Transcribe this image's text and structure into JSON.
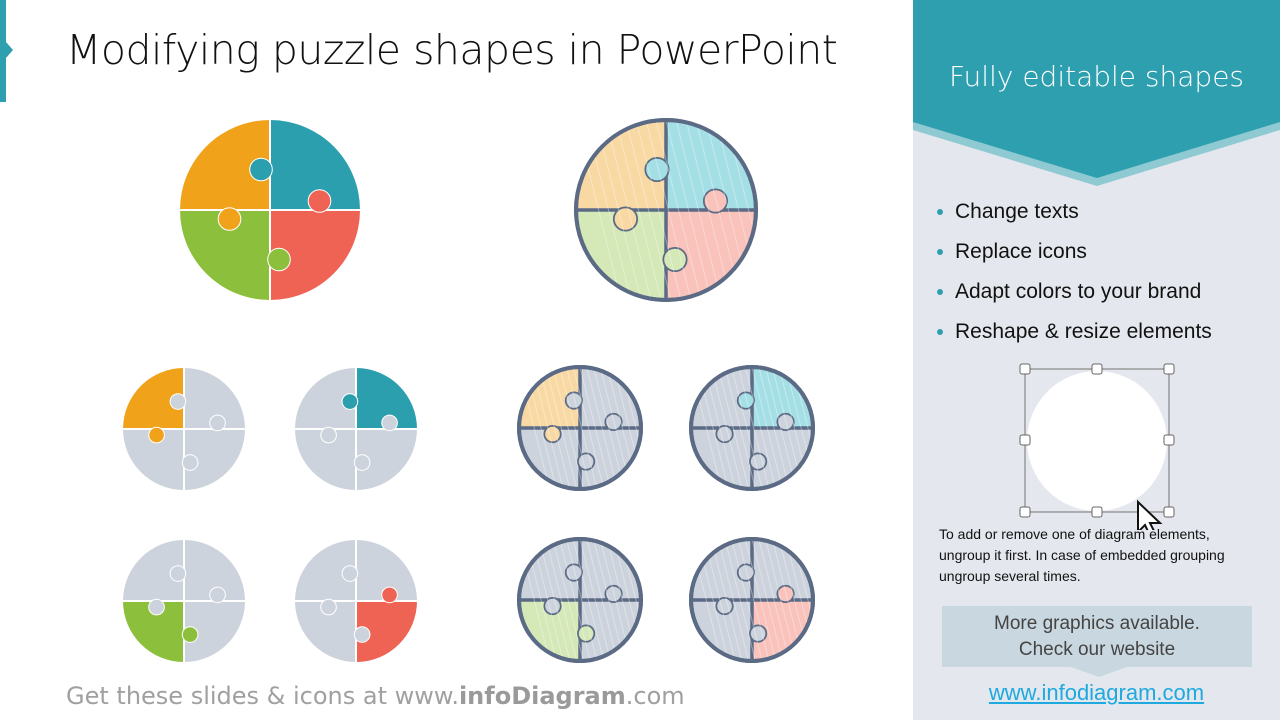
{
  "title": "Modifying puzzle shapes in PowerPoint",
  "footer": {
    "prefix": "Get these slides & icons at www.",
    "brand": "infoDiagram",
    "suffix": ".com"
  },
  "panel": {
    "banner_title": "Fully editable shapes",
    "bullets": [
      "Change texts",
      "Replace icons",
      "Adapt colors to your brand",
      "Reshape & resize elements"
    ],
    "note": "To add or remove one of diagram elements, ungroup it first. In case of embedded grouping ungroup several times.",
    "more_line1": "More graphics available.",
    "more_line2": "Check our website",
    "link": "www.infodiagram.com"
  },
  "colors": {
    "accent": "#2e9fae",
    "orange": "#f0a31a",
    "teal": "#2c9fae",
    "green": "#8cc03c",
    "red": "#ef6355",
    "grey": "#cdd3dc",
    "sketch_orange": "#f8d9a4",
    "sketch_teal": "#a5dfe6",
    "sketch_green": "#d5e8b8",
    "sketch_red": "#f9c2bb",
    "sketch_grey": "#cdd3dc",
    "sketch_stroke": "#5b6b85"
  },
  "icons": [
    "puzzle-circle-icon",
    "selection-handles-icon",
    "mouse-cursor-icon"
  ]
}
